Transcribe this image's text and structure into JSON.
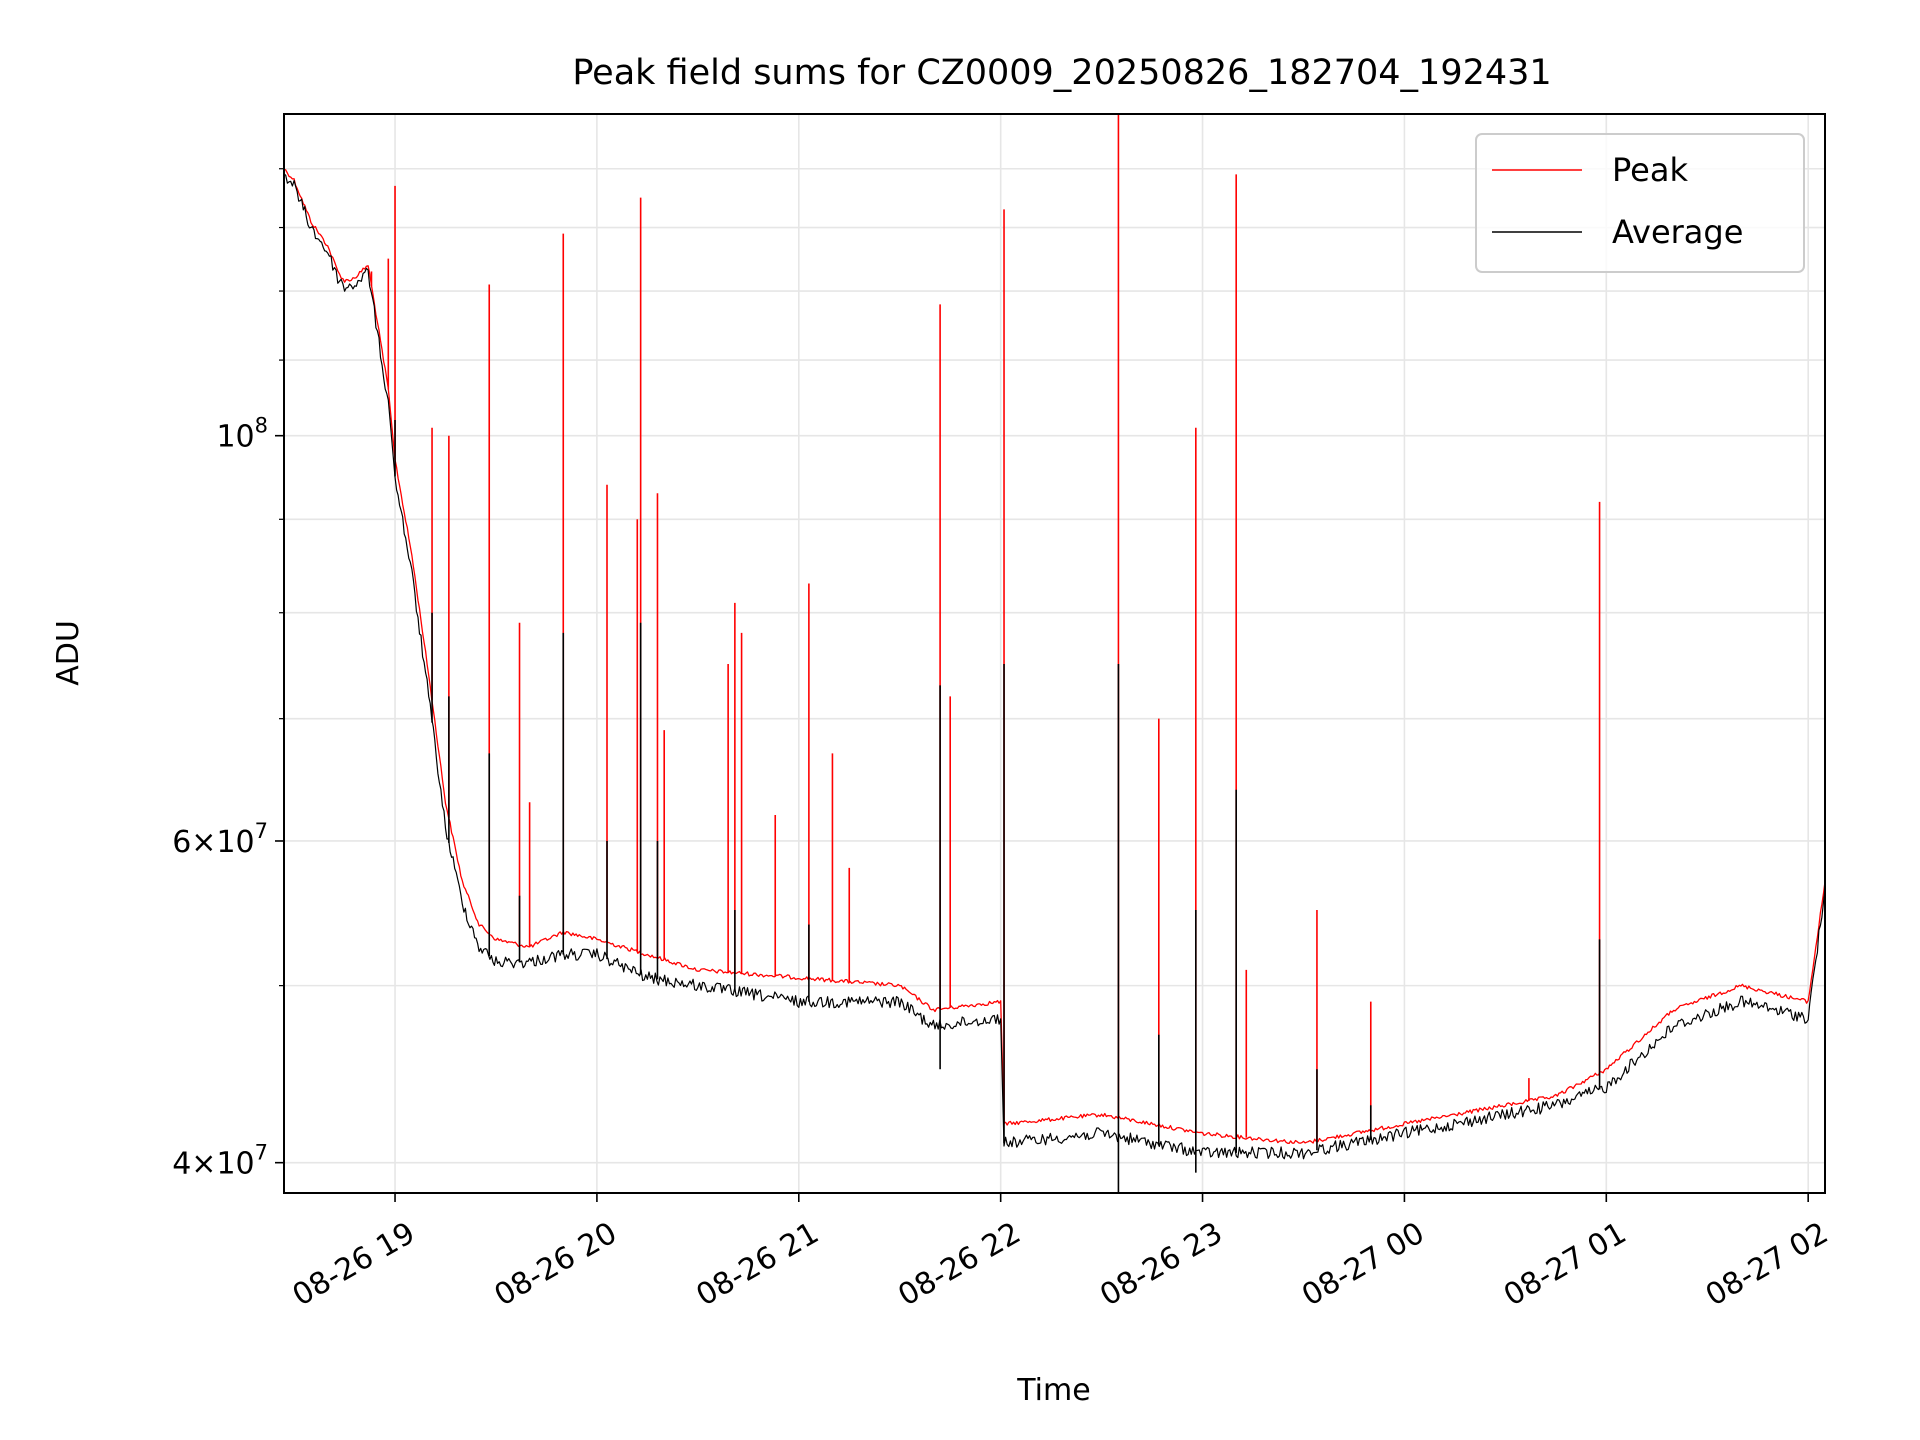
{
  "chart_data": {
    "type": "line",
    "title": "Peak field sums for CZ0009_20250826_182704_192431",
    "xlabel": "Time",
    "ylabel": "ADU",
    "y_scale": "log",
    "ylim": [
      38500000,
      150000000
    ],
    "xlim": [
      "08-26 18:27",
      "08-27 02:05"
    ],
    "grid": true,
    "legend_position": "top-right",
    "x_ticks": [
      "08-26 19",
      "08-26 20",
      "08-26 21",
      "08-26 22",
      "08-26 23",
      "08-27 00",
      "08-27 01",
      "08-27 02"
    ],
    "y_ticks": [
      {
        "value": 100000000,
        "base": "10",
        "exp": "8"
      },
      {
        "value": 60000000,
        "mantissa": "6",
        "base": "10",
        "exp": "7"
      },
      {
        "value": 40000000,
        "mantissa": "4",
        "base": "10",
        "exp": "7"
      }
    ],
    "series": [
      {
        "name": "Peak",
        "color": "#ff0000",
        "baseline": [
          [
            "08-26 18:27",
            140000000
          ],
          [
            "08-26 18:30",
            138000000
          ],
          [
            "08-26 18:35",
            131000000
          ],
          [
            "08-26 18:40",
            127000000
          ],
          [
            "08-26 18:43",
            123000000
          ],
          [
            "08-26 18:45",
            121500000
          ],
          [
            "08-26 18:48",
            122000000
          ],
          [
            "08-26 18:52",
            124000000
          ],
          [
            "08-26 18:58",
            106000000
          ],
          [
            "08-26 19:00",
            97000000
          ],
          [
            "08-26 19:05",
            86000000
          ],
          [
            "08-26 19:10",
            74000000
          ],
          [
            "08-26 19:15",
            63000000
          ],
          [
            "08-26 19:20",
            57000000
          ],
          [
            "08-26 19:25",
            54000000
          ],
          [
            "08-26 19:30",
            53000000
          ],
          [
            "08-26 19:40",
            52500000
          ],
          [
            "08-26 19:50",
            53500000
          ],
          [
            "08-26 20:00",
            53000000
          ],
          [
            "08-26 20:15",
            52000000
          ],
          [
            "08-26 20:30",
            51000000
          ],
          [
            "08-26 21:00",
            50500000
          ],
          [
            "08-26 21:30",
            50000000
          ],
          [
            "08-26 21:40",
            48500000
          ],
          [
            "08-26 22:00",
            49000000
          ],
          [
            "08-26 22:01",
            42000000
          ],
          [
            "08-26 22:30",
            42500000
          ],
          [
            "08-26 23:00",
            41500000
          ],
          [
            "08-26 23:30",
            41000000
          ],
          [
            "08-27 00:00",
            42000000
          ],
          [
            "08-27 00:30",
            43000000
          ],
          [
            "08-27 00:45",
            43500000
          ],
          [
            "08-27 01:00",
            45000000
          ],
          [
            "08-27 01:20",
            48500000
          ],
          [
            "08-27 01:40",
            50000000
          ],
          [
            "08-27 02:00",
            49000000
          ],
          [
            "08-27 02:05",
            57000000
          ]
        ],
        "spikes": [
          [
            "08-26 18:53",
            123000000
          ],
          [
            "08-26 18:58",
            125000000
          ],
          [
            "08-26 19:00",
            137000000
          ],
          [
            "08-26 19:11",
            101000000
          ],
          [
            "08-26 19:16",
            100000000
          ],
          [
            "08-26 19:28",
            121000000
          ],
          [
            "08-26 19:37",
            79000000
          ],
          [
            "08-26 19:40",
            63000000
          ],
          [
            "08-26 19:50",
            129000000
          ],
          [
            "08-26 20:03",
            94000000
          ],
          [
            "08-26 20:12",
            90000000
          ],
          [
            "08-26 20:13",
            135000000
          ],
          [
            "08-26 20:18",
            93000000
          ],
          [
            "08-26 20:20",
            69000000
          ],
          [
            "08-26 20:39",
            75000000
          ],
          [
            "08-26 20:41",
            81000000
          ],
          [
            "08-26 20:43",
            78000000
          ],
          [
            "08-26 20:53",
            62000000
          ],
          [
            "08-26 21:03",
            83000000
          ],
          [
            "08-26 21:10",
            67000000
          ],
          [
            "08-26 21:15",
            58000000
          ],
          [
            "08-26 21:42",
            118000000
          ],
          [
            "08-26 21:45",
            72000000
          ],
          [
            "08-26 22:01",
            133000000
          ],
          [
            "08-26 22:35",
            150000000
          ],
          [
            "08-26 22:47",
            70000000
          ],
          [
            "08-26 22:58",
            101000000
          ],
          [
            "08-26 23:10",
            139000000
          ],
          [
            "08-26 23:13",
            51000000
          ],
          [
            "08-26 23:34",
            55000000
          ],
          [
            "08-26 23:50",
            49000000
          ],
          [
            "08-27 00:37",
            44500000
          ],
          [
            "08-27 00:58",
            92000000
          ]
        ]
      },
      {
        "name": "Average",
        "color": "#000000",
        "baseline": [
          [
            "08-26 18:27",
            139000000
          ],
          [
            "08-26 18:30",
            137000000
          ],
          [
            "08-26 18:35",
            130000000
          ],
          [
            "08-26 18:40",
            126000000
          ],
          [
            "08-26 18:43",
            122000000
          ],
          [
            "08-26 18:45",
            120500000
          ],
          [
            "08-26 18:48",
            121000000
          ],
          [
            "08-26 18:52",
            123000000
          ],
          [
            "08-26 18:58",
            104000000
          ],
          [
            "08-26 19:00",
            95000000
          ],
          [
            "08-26 19:05",
            84000000
          ],
          [
            "08-26 19:10",
            72000000
          ],
          [
            "08-26 19:15",
            61000000
          ],
          [
            "08-26 19:20",
            55500000
          ],
          [
            "08-26 19:25",
            52500000
          ],
          [
            "08-26 19:30",
            51500000
          ],
          [
            "08-26 19:40",
            51500000
          ],
          [
            "08-26 19:50",
            52000000
          ],
          [
            "08-26 20:00",
            52000000
          ],
          [
            "08-26 20:15",
            50500000
          ],
          [
            "08-26 20:30",
            50000000
          ],
          [
            "08-26 21:00",
            49000000
          ],
          [
            "08-26 21:30",
            49000000
          ],
          [
            "08-26 21:40",
            47500000
          ],
          [
            "08-26 22:00",
            48000000
          ],
          [
            "08-26 22:01",
            41000000
          ],
          [
            "08-26 22:30",
            41500000
          ],
          [
            "08-26 23:00",
            40500000
          ],
          [
            "08-26 23:30",
            40500000
          ],
          [
            "08-27 00:00",
            41500000
          ],
          [
            "08-27 00:30",
            42500000
          ],
          [
            "08-27 00:45",
            43000000
          ],
          [
            "08-27 01:00",
            44000000
          ],
          [
            "08-27 01:20",
            47500000
          ],
          [
            "08-27 01:40",
            49000000
          ],
          [
            "08-27 02:00",
            48000000
          ],
          [
            "08-27 02:05",
            56500000
          ]
        ],
        "spikes": [
          [
            "08-26 19:00",
            102000000
          ],
          [
            "08-26 19:11",
            80000000
          ],
          [
            "08-26 19:16",
            72000000
          ],
          [
            "08-26 19:28",
            67000000
          ],
          [
            "08-26 19:37",
            56000000
          ],
          [
            "08-26 19:50",
            78000000
          ],
          [
            "08-26 20:03",
            60000000
          ],
          [
            "08-26 20:13",
            79000000
          ],
          [
            "08-26 20:18",
            60000000
          ],
          [
            "08-26 20:41",
            55000000
          ],
          [
            "08-26 21:03",
            54000000
          ],
          [
            "08-26 21:42",
            73000000
          ],
          [
            "08-26 22:01",
            75000000
          ],
          [
            "08-26 22:35",
            75000000
          ],
          [
            "08-26 22:47",
            47000000
          ],
          [
            "08-26 22:58",
            55000000
          ],
          [
            "08-26 23:10",
            64000000
          ],
          [
            "08-26 23:34",
            45000000
          ],
          [
            "08-26 23:50",
            43000000
          ],
          [
            "08-27 00:58",
            53000000
          ]
        ],
        "dips": [
          [
            "08-26 21:42",
            45000000
          ],
          [
            "08-26 22:35",
            38500000
          ],
          [
            "08-26 22:58",
            39500000
          ]
        ]
      }
    ]
  }
}
